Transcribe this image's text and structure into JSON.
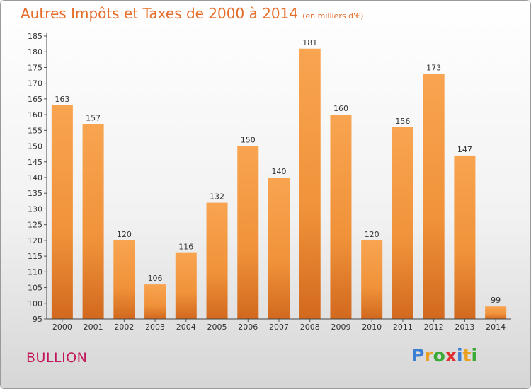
{
  "chart_data": {
    "type": "bar",
    "title": "Autres Impôts et Taxes de 2000 à 2014",
    "subtitle": "(en milliers d'€)",
    "categories": [
      "2000",
      "2001",
      "2002",
      "2003",
      "2004",
      "2005",
      "2006",
      "2007",
      "2008",
      "2009",
      "2010",
      "2011",
      "2012",
      "2013",
      "2014"
    ],
    "values": [
      163,
      157,
      120,
      106,
      116,
      132,
      150,
      140,
      181,
      160,
      120,
      156,
      173,
      147,
      99
    ],
    "ylim": [
      95,
      185
    ],
    "yticks": [
      95,
      100,
      105,
      110,
      115,
      120,
      125,
      130,
      135,
      140,
      145,
      150,
      155,
      160,
      165,
      170,
      175,
      180,
      185
    ],
    "grid": false,
    "bar_color": "#f0923a"
  },
  "place_name": "BULLION",
  "brand": {
    "letters": [
      {
        "ch": "P",
        "color": "#3b7fd4"
      },
      {
        "ch": "r",
        "color": "#e8a020"
      },
      {
        "ch": "o",
        "color": "#3aaa35"
      },
      {
        "ch": "x",
        "color": "#e03030"
      },
      {
        "ch": "i",
        "color": "#3b7fd4"
      },
      {
        "ch": "t",
        "color": "#e8a020"
      },
      {
        "ch": "i",
        "color": "#3aaa35"
      }
    ]
  }
}
